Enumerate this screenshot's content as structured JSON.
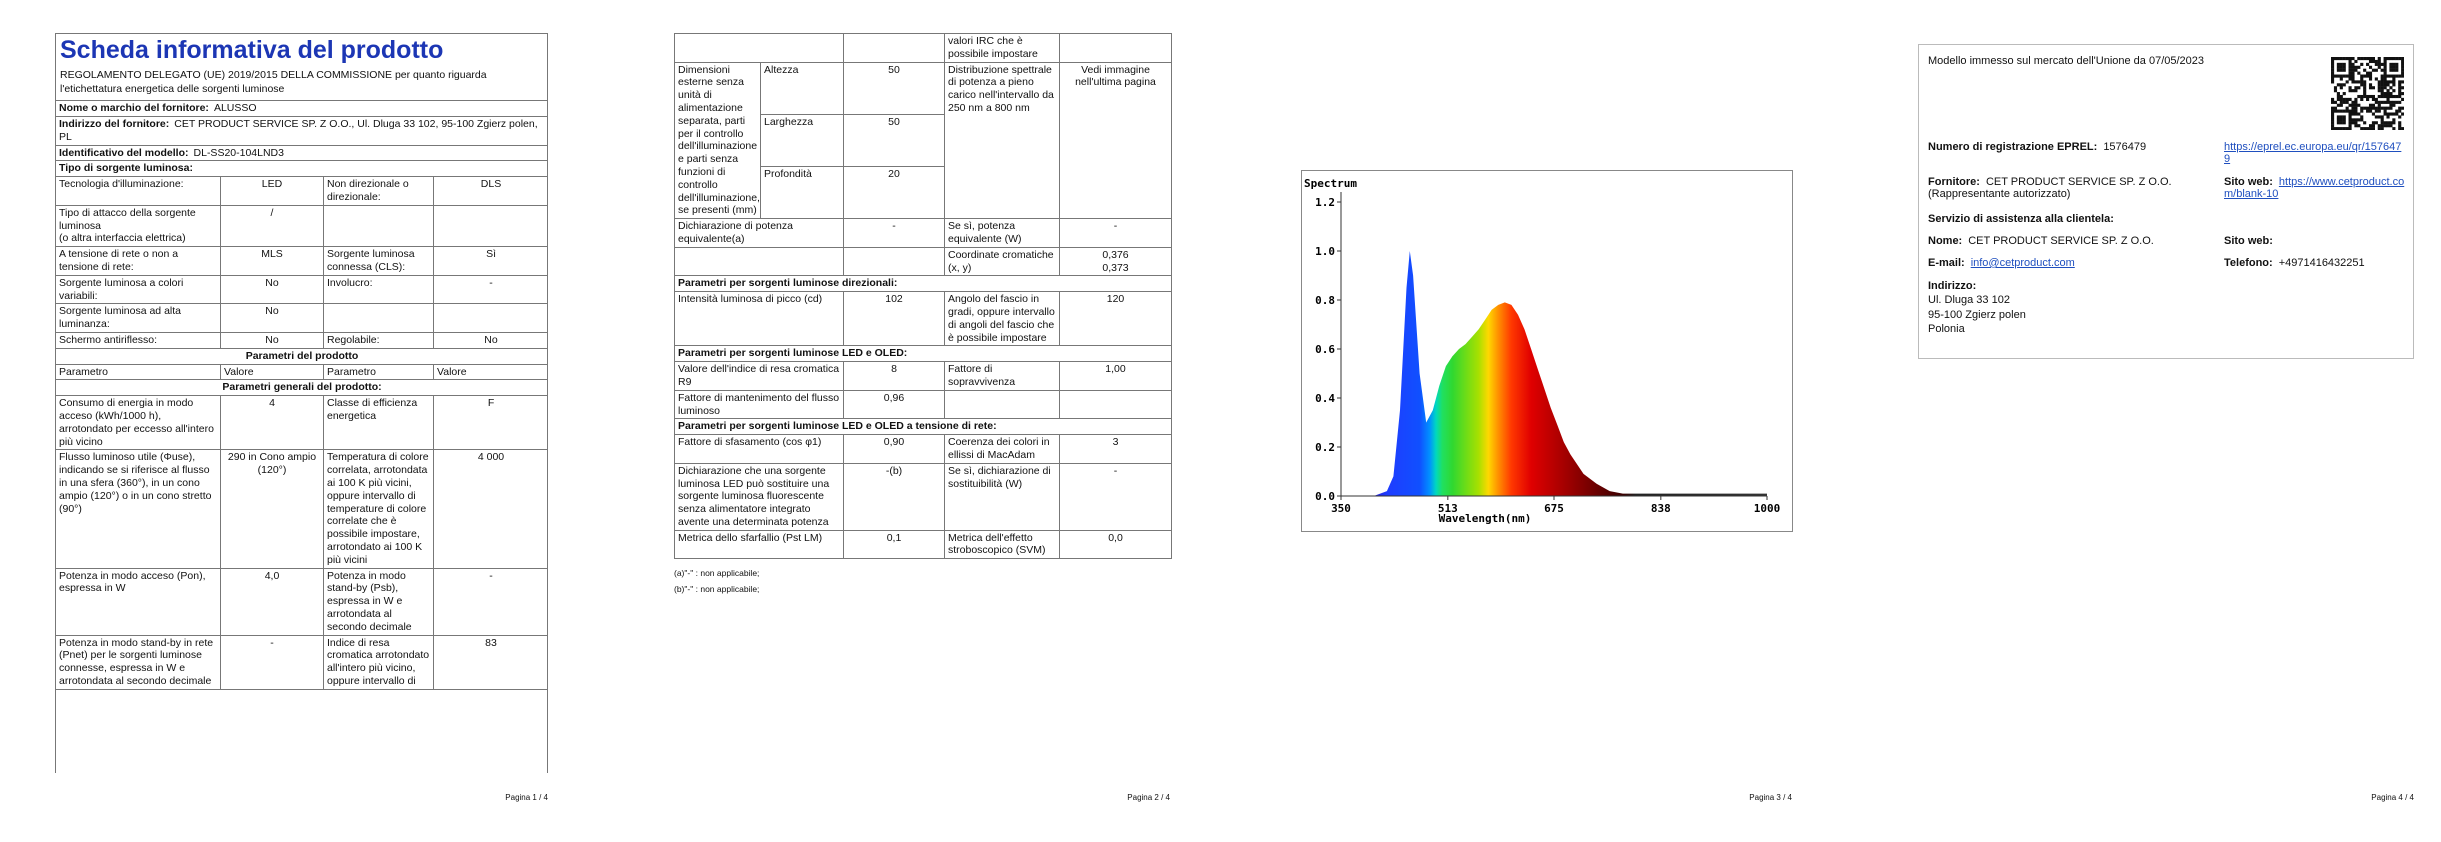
{
  "page1": {
    "title": "Scheda informativa del prodotto",
    "regulation": "REGOLAMENTO DELEGATO (UE) 2019/2015 DELLA COMMISSIONE per quanto riguarda l'etichettatura energetica delle sorgenti luminose",
    "supplier_rows": [
      [
        "Nome o marchio del fornitore:",
        "ALUSSO"
      ],
      [
        "Indirizzo del fornitore:",
        "CET PRODUCT SERVICE SP. Z O.O., Ul. Dluga 33 102, 95-100 Zgierz polen, PL"
      ],
      [
        "Identificativo del modello:",
        "DL-SS20-104LND3"
      ]
    ],
    "source_type_heading": "Tipo di sorgente luminosa:",
    "source_type_rows": [
      [
        "Tecnologia d'illuminazione:",
        "LED",
        "Non direzionale o direzionale:",
        "DLS"
      ],
      [
        "Tipo di attacco della sorgente luminosa\n(o altra interfaccia elettrica)",
        "/",
        null,
        null
      ],
      [
        "A tensione di rete o non a tensione di rete:",
        "MLS",
        "Sorgente luminosa connessa (CLS):",
        "Sì"
      ],
      [
        "Sorgente luminosa a colori variabili:",
        "No",
        "Involucro:",
        "-"
      ],
      [
        "Sorgente luminosa ad alta luminanza:",
        "No",
        null,
        null
      ],
      [
        "Schermo antiriflesso:",
        "No",
        "Regolabile:",
        "No"
      ]
    ],
    "params_heading": "Parametri del prodotto",
    "params_header": [
      "Parametro",
      "Valore",
      "Parametro",
      "Valore"
    ],
    "general_heading": "Parametri generali del prodotto:",
    "general_rows": [
      [
        "Consumo di energia in modo acceso (kWh/1000 h), arrotondato per eccesso all'intero più vicino",
        "4",
        "Classe di efficienza energetica",
        "F"
      ],
      [
        "Flusso luminoso utile (Φuse), indicando se si riferisce al flusso in una sfera (360°), in un cono ampio (120°) o in un cono stretto (90°)",
        "290 in Cono ampio (120°)",
        "Temperatura di colore correlata, arrotondata ai 100 K più vicini, oppure intervallo di temperature di colore correlate che è possibile impostare, arrotondato ai 100 K più vicini",
        "4 000"
      ],
      [
        "Potenza in modo acceso (Pon), espressa in W",
        "4,0",
        "Potenza in modo stand-by (Psb), espressa in W e arrotondata al secondo decimale",
        "-"
      ],
      [
        "Potenza in modo stand-by in rete (Pnet) per le sorgenti luminose connesse, espressa in W e arrotondata al secondo decimale",
        "-",
        "Indice di resa cromatica arrotondato all'intero più vicino, oppure intervallo di",
        "83"
      ]
    ]
  },
  "page2": {
    "continuation_row": [
      null,
      null,
      "valori IRC che è possibile impostare",
      null
    ],
    "dimensions": {
      "label": "Dimensioni esterne senza unità di alimentazione separata, parti per il controllo dell'illuminazione e parti senza funzioni di controllo dell'illuminazione, se presenti (mm)",
      "items": [
        [
          "Altezza",
          "50"
        ],
        [
          "Larghezza",
          "50"
        ],
        [
          "Profondità",
          "20"
        ]
      ],
      "parameter": "Distribuzione spettrale di potenza a pieno carico nell'intervallo da 250 nm a 800 nm",
      "value": "Vedi immagine nell'ultima pagina"
    },
    "rows": [
      [
        "Dichiarazione di potenza equivalente(a)",
        "-",
        "Se sì, potenza equivalente (W)",
        "-"
      ],
      [
        null,
        null,
        "Coordinate cromatiche (x, y)",
        "0,376\n0,373"
      ],
      "Parametri per sorgenti luminose direzionali:",
      [
        "Intensità luminosa di picco (cd)",
        "102",
        "Angolo del fascio in gradi, oppure intervallo di angoli del fascio che è possibile impostare",
        "120"
      ],
      "Parametri per sorgenti luminose LED e OLED:",
      [
        "Valore dell'indice di resa cromatica R9",
        "8",
        "Fattore di sopravvivenza",
        "1,00"
      ],
      [
        "Fattore di mantenimento del flusso luminoso",
        "0,96",
        null,
        null
      ],
      "Parametri per sorgenti luminose LED e OLED a tensione di rete:",
      [
        "Fattore di sfasamento (cos φ1)",
        "0,90",
        "Coerenza dei colori in ellissi di MacAdam",
        "3"
      ],
      [
        "Dichiarazione che una sorgente luminosa LED può sostituire una sorgente luminosa fluorescente senza alimentatore integrato avente una determinata potenza",
        "-(b)",
        "Se sì, dichiarazione di sostituibilità (W)",
        "-"
      ],
      [
        "Metrica dello sfarfallio (Pst LM)",
        "0,1",
        "Metrica dell'effetto stroboscopico (SVM)",
        "0,0"
      ]
    ],
    "footnotes": [
      "(a)\"-\" : non applicabile;",
      "(b)\"-\" : non applicabile;"
    ]
  },
  "chart_data": {
    "type": "area",
    "title": "Spectrum",
    "x_label": "Wavelength(nm)",
    "x": [
      350,
      400,
      420,
      430,
      440,
      450,
      455,
      460,
      470,
      480,
      490,
      500,
      510,
      520,
      530,
      540,
      550,
      560,
      570,
      580,
      590,
      600,
      610,
      620,
      630,
      640,
      650,
      660,
      670,
      680,
      690,
      700,
      720,
      740,
      760,
      780,
      800,
      900,
      1000
    ],
    "values": [
      0,
      0,
      0.02,
      0.08,
      0.35,
      0.85,
      1.0,
      0.9,
      0.5,
      0.3,
      0.35,
      0.45,
      0.53,
      0.57,
      0.6,
      0.62,
      0.65,
      0.68,
      0.72,
      0.76,
      0.78,
      0.79,
      0.78,
      0.74,
      0.68,
      0.6,
      0.52,
      0.44,
      0.36,
      0.29,
      0.22,
      0.17,
      0.09,
      0.05,
      0.02,
      0.01,
      0.01,
      0.01,
      0.01
    ],
    "xlim": [
      350,
      1000
    ],
    "xticks": [
      350,
      513,
      675,
      838,
      1000
    ],
    "ylim": [
      0,
      1.2
    ],
    "yticks": [
      {
        "value": 0,
        "label": "0.0"
      },
      0.2,
      0.4,
      0.6,
      0.8,
      {
        "value": 1,
        "label": "1.0"
      },
      1.2
    ]
  },
  "page4": {
    "market_date": "Modello immesso sul mercato dell'Unione da 07/05/2023",
    "eprel_label": "Numero di registrazione EPREL:",
    "eprel_number": "1576479",
    "eprel_link": "https://eprel.ec.europa.eu/qr/1576479",
    "supplier_label": "Fornitore:",
    "supplier": "CET PRODUCT SERVICE SP. Z O.O. (Rappresentante autorizzato)",
    "website_label": "Sito web:",
    "website": "https://www.cetproduct.com/blank-10",
    "service_heading": "Servizio di assistenza alla clientela:",
    "name_label": "Nome:",
    "name": "CET PRODUCT SERVICE SP. Z O.O.",
    "service_website_label": "Sito web:",
    "email_label": "E-mail:",
    "email": "info@cetproduct.com",
    "phone_label": "Telefono:",
    "phone": "+4971416432251",
    "address_label": "Indirizzo:",
    "address": [
      "Ul. Dluga 33 102",
      "95-100 Zgierz polen",
      "Polonia"
    ]
  },
  "footers": [
    "Pagina 1 / 4",
    "Pagina 2 / 4",
    "Pagina 3 / 4",
    "Pagina 4 / 4"
  ]
}
